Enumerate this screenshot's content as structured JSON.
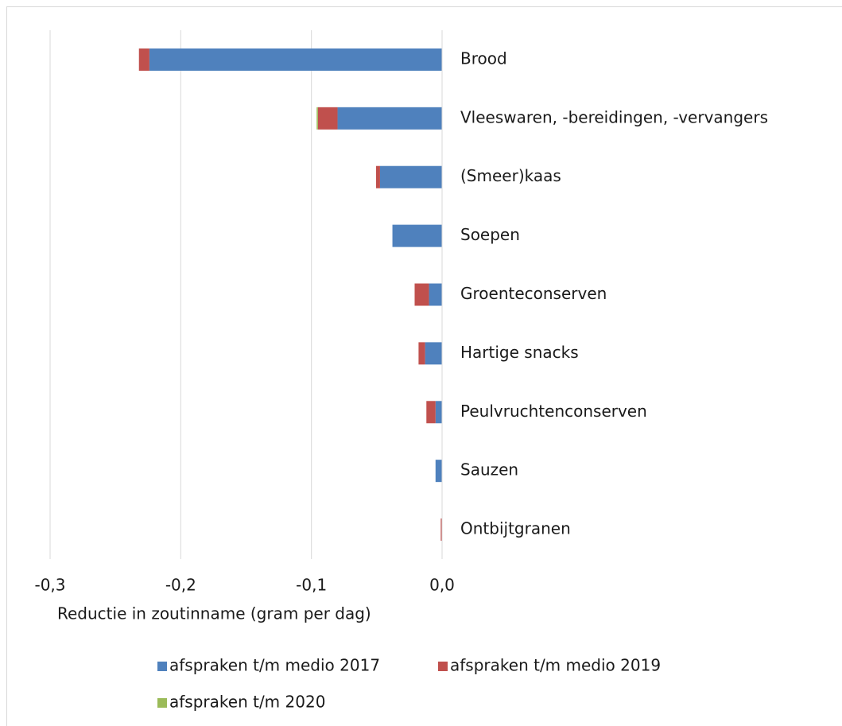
{
  "chart_data": {
    "type": "bar",
    "orientation": "horizontal",
    "stacked": true,
    "categories": [
      "Brood",
      "Vleeswaren, -bereidingen, -vervangers",
      "(Smeer)kaas",
      "Soepen",
      "Groenteconserven",
      "Hartige snacks",
      "Peulvruchtenconserven",
      "Sauzen",
      "Ontbijtgranen"
    ],
    "series": [
      {
        "name": "afspraken t/m medio 2017",
        "color": "#4f81bd",
        "values": [
          -0.224,
          -0.08,
          -0.0475,
          -0.038,
          -0.01,
          -0.013,
          -0.005,
          -0.005,
          0
        ]
      },
      {
        "name": "afspraken t/m medio 2019",
        "color": "#c0504d",
        "values": [
          -0.008,
          -0.015,
          -0.003,
          0,
          -0.011,
          -0.005,
          -0.007,
          0,
          -0.001
        ]
      },
      {
        "name": "afspraken t/m 2020",
        "color": "#9bbb59",
        "values": [
          0,
          -0.001,
          0,
          0,
          0,
          0,
          0,
          0,
          0
        ]
      }
    ],
    "xlabel": "Reductie in zoutinname (gram per dag)",
    "xlim": [
      -0.3,
      0
    ],
    "xticks": [
      {
        "value": -0.3,
        "label": "-0,3"
      },
      {
        "value": -0.2,
        "label": "-0,2"
      },
      {
        "value": -0.1,
        "label": "-0,1"
      },
      {
        "value": 0,
        "label": "0,0"
      }
    ],
    "grid": true,
    "legend": "bottom"
  }
}
